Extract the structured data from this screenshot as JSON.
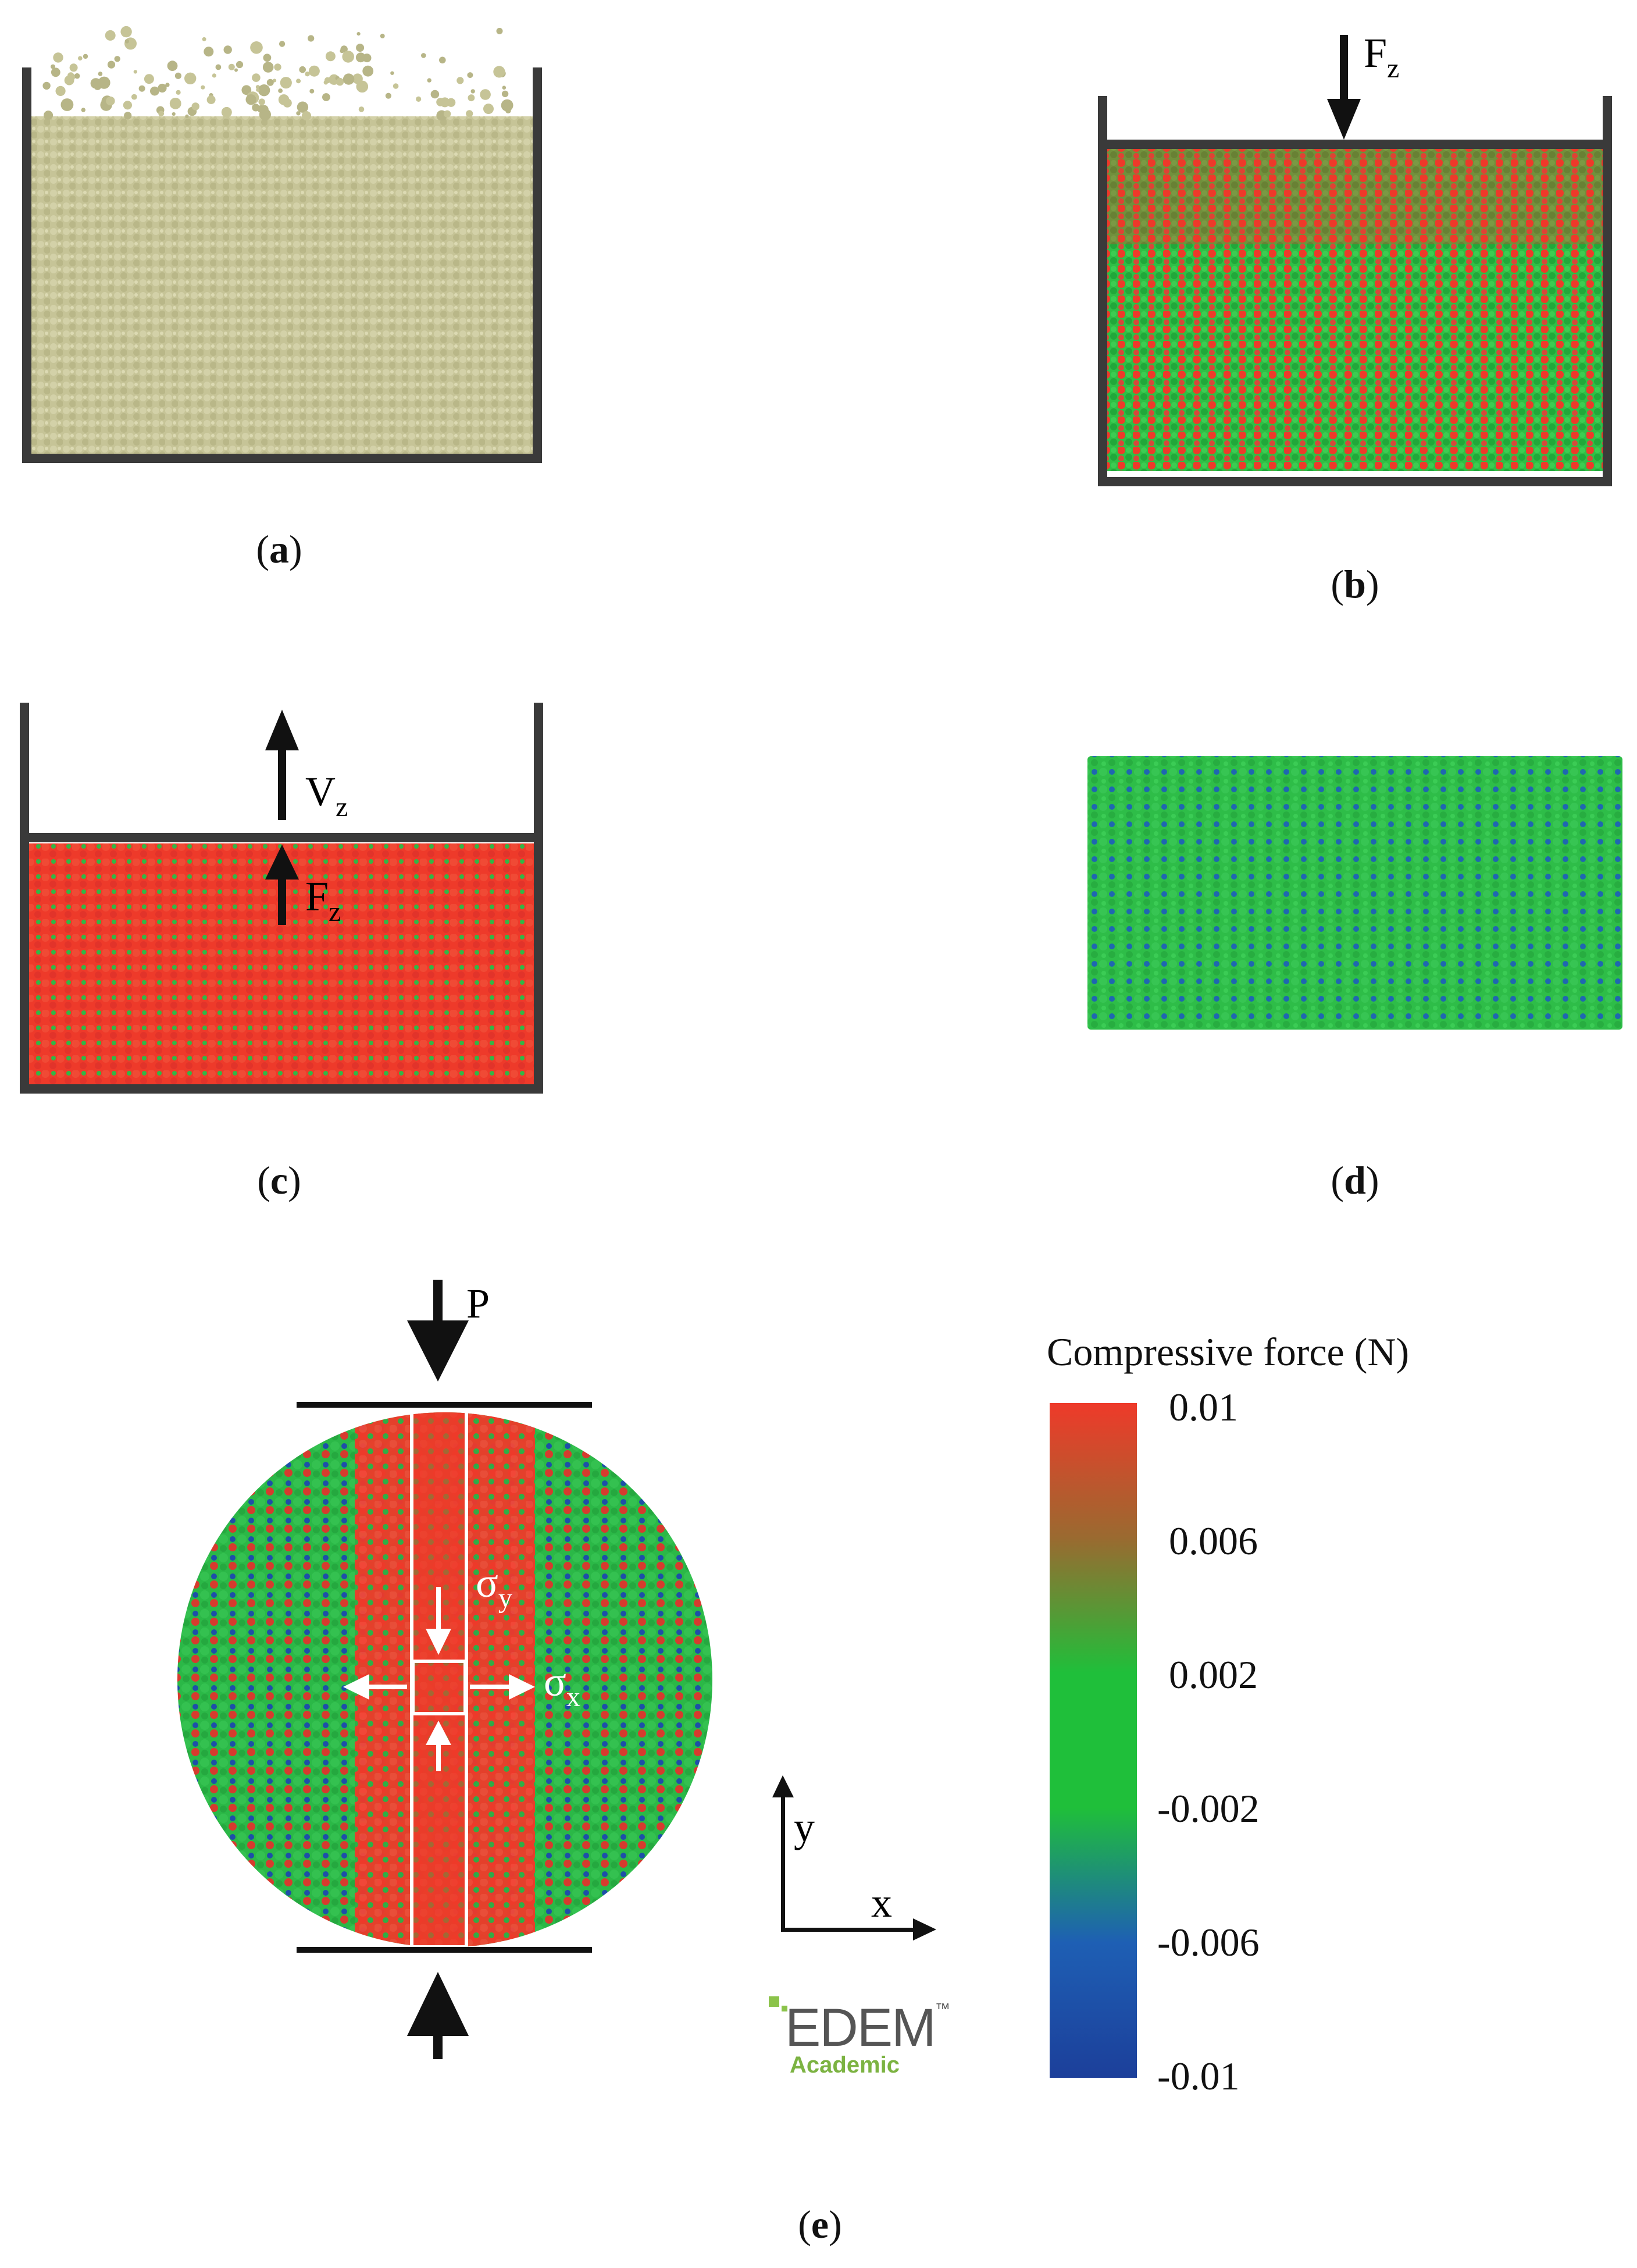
{
  "panels": {
    "a": {
      "caption_open": "(",
      "caption_letter": "a",
      "caption_close": ")"
    },
    "b": {
      "caption_open": "(",
      "caption_letter": "b",
      "caption_close": ")",
      "force_label": "F",
      "force_sub": "z"
    },
    "c": {
      "caption_open": "(",
      "caption_letter": "c",
      "caption_close": ")",
      "velocity_label": "V",
      "velocity_sub": "z",
      "force_label": "F",
      "force_sub": "z"
    },
    "d": {
      "caption_open": "(",
      "caption_letter": "d",
      "caption_close": ")"
    },
    "e": {
      "caption_open": "(",
      "caption_letter": "e",
      "caption_close": ")",
      "load_label": "P",
      "sigma_y_label": "σ",
      "sigma_y_sub": "y",
      "sigma_x_label": "σ",
      "sigma_x_sub": "x",
      "axis_x": "x",
      "axis_y": "y"
    }
  },
  "legend": {
    "title": "Compressive force (N)",
    "ticks": [
      "0.01",
      "0.006",
      "0.002",
      "-0.002",
      "-0.006",
      "-0.01"
    ],
    "colors": [
      "#ee3a2a",
      "#9a6a30",
      "#1fbf3a",
      "#1fbf3a",
      "#1e5fb4",
      "#1c3f9a"
    ]
  },
  "logo": {
    "name": "EDEM",
    "tm": "™",
    "sub": "Academic"
  },
  "colors": {
    "particle_a": "#c9c79a",
    "red": "#ee3a2a",
    "green": "#22bb3d",
    "blue": "#1f55b0",
    "frame": "#3a3a3a"
  }
}
